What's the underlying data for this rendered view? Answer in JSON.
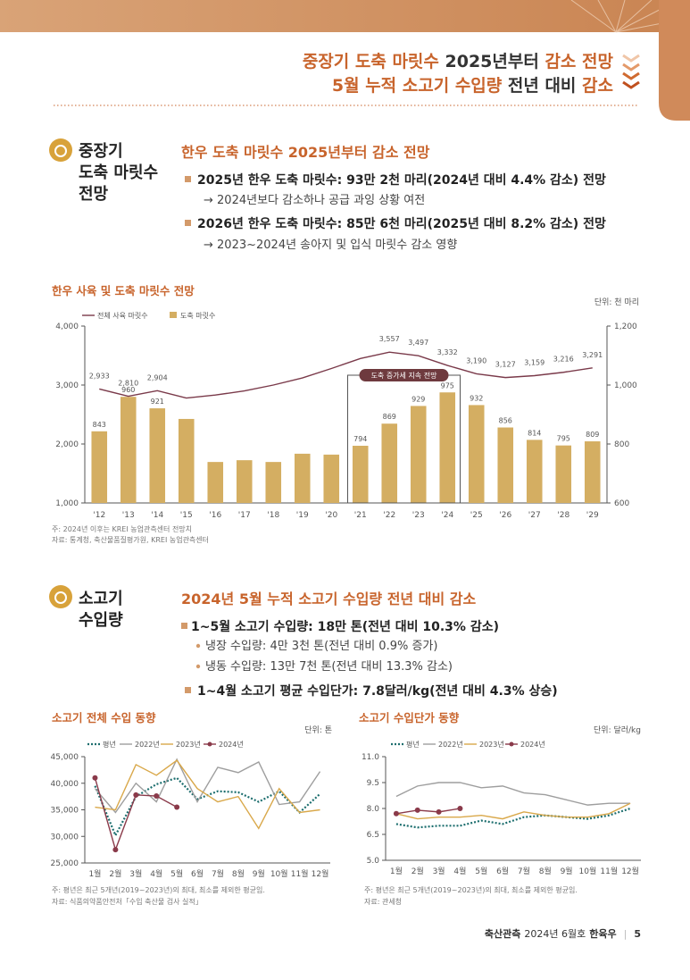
{
  "header": {
    "line1": [
      "중장기 도축 마릿수",
      " 2025년부터 ",
      "감소 전망"
    ],
    "line2": [
      "5월 누적 소고기 수입량",
      " 전년 대비 ",
      "감소"
    ]
  },
  "section1": {
    "label": [
      "중장기",
      "도축 마릿수",
      "전망"
    ],
    "heading": "한우 도축 마릿수 2025년부터 감소 전망",
    "bullets": [
      {
        "text": "2025년 한우 도축 마릿수: 93만 2천 마리(2024년 대비 4.4% 감소) 전망",
        "sub": "→ 2024년보다 감소하나 공급 과잉 상황 여전"
      },
      {
        "text": "2026년 한우 도축 마릿수: 85만 6천 마리(2025년 대비 8.2% 감소) 전망",
        "sub": "→ 2023~2024년 송아지 및 입식 마릿수 감소 영향"
      }
    ]
  },
  "section2": {
    "label": [
      "소고기",
      "수입량"
    ],
    "heading": "2024년 5월 누적 소고기 수입량 전년 대비 감소",
    "bullets": [
      {
        "text": "1~5월 소고기 수입량: 18만 톤(전년 대비 10.3% 감소)",
        "subs": [
          "냉장 수입량: 4만 3천 톤(전년 대비 0.9% 증가)",
          "냉동 수입량: 13만 7천 톤(전년 대비 13.3% 감소)"
        ]
      },
      {
        "text": "1~4월 소고기 평균 수입단가: 7.8달러/kg(전년 대비 4.3% 상승)"
      }
    ]
  },
  "chart_data": [
    {
      "type": "bar",
      "title": "한우 사육 및 도축 마릿수 전망",
      "unit": "단위: 천 마리",
      "categories": [
        "'12",
        "'13",
        "'14",
        "'15",
        "'16",
        "'17",
        "'18",
        "'19",
        "'20",
        "'21",
        "'22",
        "'23",
        "'24",
        "'25",
        "'26",
        "'27",
        "'28",
        "'29"
      ],
      "series": [
        {
          "name": "전체 사육 마릿수",
          "type": "line",
          "color": "#7a3a4a",
          "values": [
            2933,
            2810,
            2904,
            2780,
            2830,
            2900,
            3000,
            3120,
            3280,
            3450,
            3557,
            3497,
            3332,
            3190,
            3127,
            3159,
            3216,
            3291
          ],
          "value_labels": [
            "2,933",
            "2,810",
            "2,904",
            null,
            null,
            null,
            null,
            null,
            null,
            null,
            "3,557",
            "3,497",
            "3,332",
            "3,190",
            "3,127",
            "3,159",
            "3,216",
            "3,291"
          ]
        },
        {
          "name": "도축 마릿수",
          "type": "bar",
          "axis": "y2",
          "color": "#d4ae62",
          "values": [
            843,
            960,
            921,
            885,
            739,
            745,
            739,
            767,
            764,
            794,
            869,
            929,
            975,
            932,
            856,
            814,
            795,
            809
          ],
          "value_labels": [
            "843",
            "960",
            "921",
            null,
            null,
            null,
            null,
            null,
            null,
            "794",
            "869",
            "929",
            "975",
            "932",
            "856",
            "814",
            "795",
            "809"
          ]
        }
      ],
      "ylim": [
        1000,
        4000
      ],
      "yticks": [
        {
          "value": 1000,
          "label": "1,000"
        },
        {
          "value": 2000,
          "label": "2,000"
        },
        {
          "value": 3000,
          "label": "3,000"
        },
        {
          "value": 4000,
          "label": "4,000"
        }
      ],
      "y2lim": [
        600,
        1200
      ],
      "y2ticks": [
        600,
        800,
        {
          "value": 1000,
          "label": "1,000"
        },
        {
          "value": 1200,
          "label": "1,200"
        }
      ],
      "annotation": "도축 증가세 지속 전망",
      "notes": [
        "주: 2024년 이후는 KREI 농업관측센터 전망치",
        "자료: 통계청, 축산물품질평가원, KREI 농업관측센터"
      ]
    },
    {
      "type": "line",
      "title": "소고기 전체 수입 동향",
      "unit": "단위: 톤",
      "categories": [
        "1월",
        "2월",
        "3월",
        "4월",
        "5월",
        "6월",
        "7월",
        "8월",
        "9월",
        "10월",
        "11월",
        "12월"
      ],
      "series": [
        {
          "name": "평년",
          "color": "#1c6e6e",
          "dash": "dotted",
          "values": [
            39500,
            30200,
            37500,
            39800,
            41000,
            37000,
            38500,
            38300,
            36500,
            38500,
            34500,
            38000
          ]
        },
        {
          "name": "2022년",
          "color": "#9e9e9e",
          "values": [
            39000,
            34500,
            40000,
            36500,
            44500,
            36500,
            43000,
            42000,
            44000,
            36000,
            36500,
            42200
          ]
        },
        {
          "name": "2023년",
          "color": "#d9a84a",
          "values": [
            35500,
            35000,
            43500,
            41500,
            44300,
            39000,
            36500,
            37500,
            31500,
            39000,
            34500,
            35000
          ]
        },
        {
          "name": "2024년",
          "color": "#8a3a4a",
          "markers": true,
          "values": [
            41000,
            27500,
            37800,
            37600,
            35500,
            null,
            null,
            null,
            null,
            null,
            null,
            null
          ]
        }
      ],
      "ylim": [
        25000,
        45000
      ],
      "yticks": [
        {
          "value": 25000,
          "label": "25,000"
        },
        {
          "value": 30000,
          "label": "30,000"
        },
        {
          "value": 35000,
          "label": "35,000"
        },
        {
          "value": 40000,
          "label": "40,000"
        },
        {
          "value": 45000,
          "label": "45,000"
        }
      ],
      "notes": [
        "주: 평년은 최근 5개년(2019~2023년)의 최대, 최소를 제외한 평균임.",
        "자료: 식품의약품안전처「수입 축산물 검사 실적」"
      ]
    },
    {
      "type": "line",
      "title": "소고기 수입단가 동향",
      "unit": "단위: 달러/kg",
      "categories": [
        "1월",
        "2월",
        "3월",
        "4월",
        "5월",
        "6월",
        "7월",
        "8월",
        "9월",
        "10월",
        "11월",
        "12월"
      ],
      "series": [
        {
          "name": "평년",
          "color": "#1c6e6e",
          "dash": "dotted",
          "values": [
            7.1,
            6.9,
            7.0,
            7.0,
            7.3,
            7.1,
            7.5,
            7.6,
            7.5,
            7.4,
            7.6,
            8.0
          ]
        },
        {
          "name": "2022년",
          "color": "#9e9e9e",
          "values": [
            8.7,
            9.3,
            9.5,
            9.5,
            9.2,
            9.3,
            8.9,
            8.8,
            8.5,
            8.2,
            8.3,
            8.3
          ]
        },
        {
          "name": "2023년",
          "color": "#d9a84a",
          "values": [
            7.7,
            7.4,
            7.5,
            7.5,
            7.6,
            7.4,
            7.8,
            7.6,
            7.5,
            7.5,
            7.7,
            8.3
          ]
        },
        {
          "name": "2024년",
          "color": "#8a3a4a",
          "markers": true,
          "values": [
            7.7,
            7.9,
            7.8,
            8.0,
            null,
            null,
            null,
            null,
            null,
            null,
            null,
            null
          ]
        }
      ],
      "ylim": [
        5,
        11
      ],
      "yticks": [
        {
          "value": 5,
          "label": "5.0"
        },
        {
          "value": 6.5,
          "label": "6.5"
        },
        {
          "value": 8,
          "label": "8.0"
        },
        {
          "value": 9.5,
          "label": "9.5"
        },
        {
          "value": 11,
          "label": "11.0"
        }
      ],
      "notes": [
        "주: 평년은 최근 5개년(2019~2023년)의 최대, 최소를 제외한 평균임.",
        "자료: 관세청"
      ]
    }
  ],
  "footer": [
    "축산관측",
    "2024년 6월호",
    "한육우",
    "5"
  ]
}
